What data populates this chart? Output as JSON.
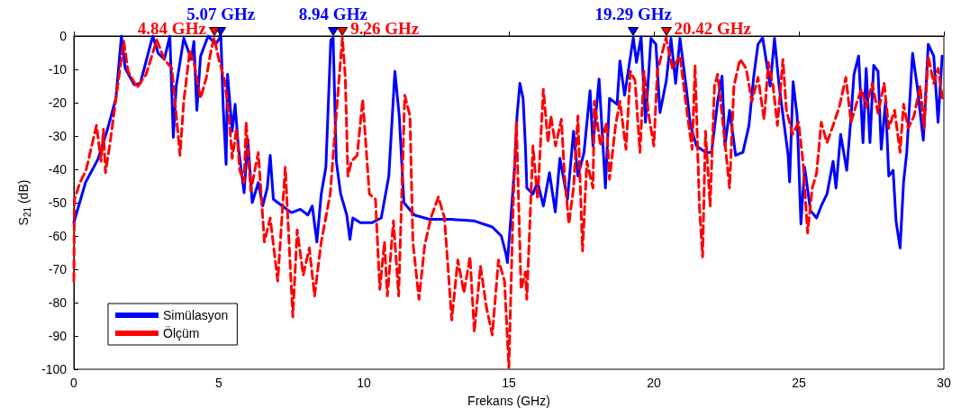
{
  "chart_data": {
    "type": "line",
    "xlabel": "Frekans (GHz)",
    "ylabel": "S$_{21}$ (dB)",
    "xlim": [
      0,
      30
    ],
    "xticks": [
      0,
      5,
      10,
      15,
      20,
      25,
      30
    ],
    "ylim": [
      -100,
      0
    ],
    "yticks": [
      -100,
      -90,
      -80,
      -70,
      -60,
      -50,
      -40,
      -30,
      -20,
      -10,
      0
    ],
    "grid": false,
    "legend": "bottom left",
    "marker": "none",
    "series": [
      {
        "name": "Simülasyon",
        "color": "#0000ff",
        "line_style": "solid",
        "x": [
          0,
          0.2,
          0.4,
          0.83,
          1.14,
          1.45,
          1.64,
          1.77,
          2.08,
          2.29,
          2.72,
          2.91,
          3.12,
          3.31,
          3.43,
          3.53,
          3.79,
          4.05,
          4.14,
          4.24,
          4.37,
          4.63,
          4.89,
          5.07,
          5.15,
          5.25,
          5.3,
          5.46,
          5.56,
          5.67,
          5.87,
          6.0,
          6.15,
          6.36,
          6.51,
          6.67,
          6.77,
          6.88,
          7.19,
          7.5,
          7.81,
          8.07,
          8.22,
          8.38,
          8.53,
          8.69,
          8.86,
          8.94,
          9.05,
          9.2,
          9.41,
          9.52,
          9.62,
          9.88,
          10.29,
          10.6,
          10.86,
          11.07,
          11.22,
          11.38,
          11.74,
          12.26,
          12.98,
          13.81,
          14.43,
          14.74,
          14.9,
          14.95,
          15.1,
          15.21,
          15.28,
          15.38,
          15.49,
          15.57,
          15.62,
          15.83,
          15.99,
          16.19,
          16.4,
          16.6,
          16.76,
          17.02,
          17.23,
          17.38,
          17.59,
          17.8,
          17.9,
          18.11,
          18.33,
          18.47,
          18.73,
          18.83,
          18.99,
          19.29,
          19.4,
          19.56,
          19.71,
          19.9,
          20.07,
          20.21,
          20.43,
          20.59,
          20.75,
          20.9,
          21.11,
          21.26,
          21.47,
          21.78,
          21.99,
          22.2,
          22.35,
          22.45,
          22.61,
          22.82,
          23.07,
          23.28,
          23.44,
          23.59,
          23.75,
          24.01,
          24.16,
          24.32,
          24.63,
          24.68,
          24.8,
          24.94,
          25.07,
          25.2,
          25.4,
          25.61,
          25.77,
          25.97,
          26.18,
          26.28,
          26.44,
          26.65,
          26.8,
          26.9,
          27.06,
          27.21,
          27.32,
          27.45,
          27.58,
          27.73,
          27.84,
          27.99,
          28.1,
          28.25,
          28.35,
          28.49,
          28.61,
          28.72,
          28.92,
          29.08,
          29.29,
          29.46,
          29.65,
          29.8,
          29.94
        ],
        "values": [
          -56,
          -50,
          -44,
          -37,
          -28.6,
          -18.7,
          0,
          -9.7,
          -14.6,
          -14.2,
          0,
          -5.2,
          -7,
          0,
          -30.4,
          -15,
          -0.7,
          -7,
          -1.6,
          -22.3,
          -6,
          0,
          -2.5,
          0,
          -21.4,
          -38.5,
          -11.5,
          -28.6,
          -20.5,
          -33,
          -47,
          -31,
          -50,
          -44,
          -51,
          -45.6,
          -35.8,
          -49,
          -51,
          -53,
          -52,
          -53.7,
          -51,
          -61.8,
          -47.4,
          -39.4,
          -1.2,
          -0.5,
          -37.6,
          -47.4,
          -53.7,
          -61,
          -54.6,
          -56,
          -56,
          -54.6,
          -42,
          -10.6,
          -24,
          -50,
          -53.7,
          -55,
          -55,
          -55.5,
          -57.3,
          -60,
          -65.4,
          -68,
          -51,
          -37.6,
          -24,
          -14.2,
          -18.7,
          -33,
          -45.6,
          -47.4,
          -43.8,
          -51,
          -41,
          -52.8,
          -36.7,
          -49,
          -28.6,
          -42,
          -35,
          -16.4,
          -33,
          -12.9,
          -45.6,
          -18.7,
          -20.5,
          -7.5,
          -17.8,
          -0.5,
          -7.9,
          -0.3,
          -25.9,
          -0.7,
          -2.5,
          -23,
          -13.3,
          -0.7,
          -14.2,
          -0.7,
          -15,
          -26.8,
          -33,
          -34.9,
          -34.9,
          -19.6,
          -12,
          -33,
          -22.3,
          -35.8,
          -34.9,
          -26.8,
          -12.4,
          -2.5,
          -0.5,
          -15,
          -0.7,
          -15,
          -35.8,
          -43.8,
          -13.7,
          -24,
          -56.4,
          -39.4,
          -52.4,
          -54.6,
          -51,
          -47.4,
          -37.6,
          -45.6,
          -29.5,
          -40.3,
          -24,
          -11.5,
          -6,
          -32,
          -9.7,
          -32,
          -8.8,
          -10.6,
          -34,
          -19.6,
          -42,
          -40.3,
          -55.5,
          -63.6,
          -43.8,
          -34.9,
          -5.2,
          -15,
          -31.3,
          -2.5,
          -6,
          -25.9,
          -6
        ]
      },
      {
        "name": "Ölçüm",
        "color": "#ff0000",
        "line_style": "dashed",
        "x": [
          0,
          0.02,
          0.21,
          0.42,
          0.78,
          0.94,
          1.02,
          1.09,
          1.25,
          1.51,
          1.72,
          1.87,
          2.18,
          2.49,
          2.86,
          3.12,
          3.38,
          3.66,
          3.79,
          4.0,
          4.16,
          4.37,
          4.57,
          4.73,
          4.84,
          5.0,
          5.2,
          5.35,
          5.46,
          5.61,
          5.72,
          5.87,
          5.94,
          6.1,
          6.36,
          6.57,
          6.77,
          7.03,
          7.29,
          7.55,
          7.7,
          7.91,
          8.12,
          8.3,
          8.53,
          8.84,
          9.1,
          9.26,
          9.36,
          9.45,
          9.57,
          9.77,
          9.96,
          10.19,
          10.4,
          10.55,
          10.71,
          10.81,
          11.02,
          11.2,
          11.41,
          11.59,
          11.69,
          11.9,
          12.1,
          12.31,
          12.57,
          12.78,
          13.03,
          13.24,
          13.45,
          13.66,
          13.81,
          14.02,
          14.23,
          14.43,
          14.64,
          14.85,
          15.0,
          15.16,
          15.26,
          15.42,
          15.57,
          15.62,
          15.83,
          15.99,
          16.19,
          16.35,
          16.45,
          16.61,
          16.81,
          16.92,
          17.07,
          17.23,
          17.38,
          17.54,
          17.69,
          17.9,
          17.95,
          18.16,
          18.37,
          18.47,
          18.68,
          18.83,
          19.04,
          19.19,
          19.35,
          19.52,
          19.66,
          19.81,
          20.0,
          20.12,
          20.42,
          20.64,
          20.9,
          21.16,
          21.32,
          21.42,
          21.57,
          21.68,
          21.78,
          21.94,
          22.09,
          22.2,
          22.4,
          22.61,
          22.76,
          22.97,
          23.18,
          23.38,
          23.59,
          23.8,
          23.95,
          24.11,
          24.26,
          24.45,
          24.57,
          24.78,
          24.99,
          25.15,
          25.3,
          25.46,
          25.61,
          25.77,
          25.97,
          26.18,
          26.39,
          26.62,
          26.8,
          27.01,
          27.16,
          27.32,
          27.53,
          27.73,
          27.94,
          28.1,
          28.3,
          28.49,
          28.61,
          28.77,
          28.97,
          29.18,
          29.32,
          29.46,
          29.65,
          29.8,
          29.95
        ],
        "values": [
          -73.5,
          -49,
          -44,
          -40.3,
          -26.8,
          -37.6,
          -28,
          -41,
          -32,
          -15,
          -1.6,
          -10.6,
          -15.5,
          -11.5,
          -1.2,
          -7,
          -9.7,
          -35.8,
          -19.6,
          -4.3,
          -8.8,
          -18.7,
          -12.4,
          -4.3,
          -0.5,
          -7,
          -13.3,
          -24,
          -36.7,
          -27.7,
          -40.3,
          -44,
          -26,
          -46.5,
          -35,
          -61.8,
          -54.6,
          -73.5,
          -39.4,
          -84.3,
          -58.2,
          -71.7,
          -63.6,
          -78,
          -61.8,
          -47.4,
          -17.8,
          -0.5,
          -12.4,
          -42,
          -37.6,
          -35.8,
          -19.1,
          -47.4,
          -49,
          -76,
          -61.8,
          -78,
          -55.5,
          -78,
          -17.8,
          -24,
          -61.8,
          -79,
          -62.7,
          -54.6,
          -48.3,
          -54.6,
          -85.2,
          -67.2,
          -77,
          -66.3,
          -88.8,
          -69,
          -81.6,
          -89.7,
          -67.2,
          -73.5,
          -99.5,
          -47.4,
          -25.9,
          -76,
          -70.8,
          -79,
          -33,
          -49,
          -16,
          -32,
          -24,
          -33,
          -25,
          -42,
          -56.4,
          -45.6,
          -24,
          -64.5,
          -37.6,
          -45.6,
          -19.6,
          -33,
          -25.9,
          -43,
          -26.8,
          -19.6,
          -34,
          -10.6,
          -13.3,
          -34.9,
          -10.6,
          -23,
          -33,
          -10.6,
          -0.5,
          -9.7,
          -6,
          -24,
          -34,
          -8.8,
          -51,
          -66.3,
          -28.6,
          -51,
          -15,
          -11.5,
          -27.7,
          -45.6,
          -15,
          -7,
          -9.7,
          -19.6,
          -12.4,
          -25,
          -7.9,
          -15,
          -26.8,
          -7,
          -22.3,
          -29.5,
          -25.9,
          -38.5,
          -59.1,
          -45.6,
          -41.2,
          -25.9,
          -32,
          -26.8,
          -21.4,
          -12.4,
          -25.9,
          -19.6,
          -16,
          -21.4,
          -14.2,
          -23.2,
          -14.2,
          -27.7,
          -22.3,
          -34.9,
          -20.5,
          -27.7,
          -24,
          -15,
          -27.7,
          -6,
          -14.2,
          -9.7,
          -18.7
        ]
      }
    ],
    "annotations": [
      {
        "text": "4.84 GHz",
        "x": 4.84,
        "y": 0
      },
      {
        "text": "5.07 GHz",
        "x": 5.07,
        "y": 0
      },
      {
        "text": "8.94 GHz",
        "x": 8.94,
        "y": 0
      },
      {
        "text": "9.26 GHz",
        "x": 9.26,
        "y": 0
      },
      {
        "text": "19.29 GHz",
        "x": 19.29,
        "y": 0
      },
      {
        "text": "20.42 GHz",
        "x": 20.42,
        "y": 0
      }
    ]
  }
}
